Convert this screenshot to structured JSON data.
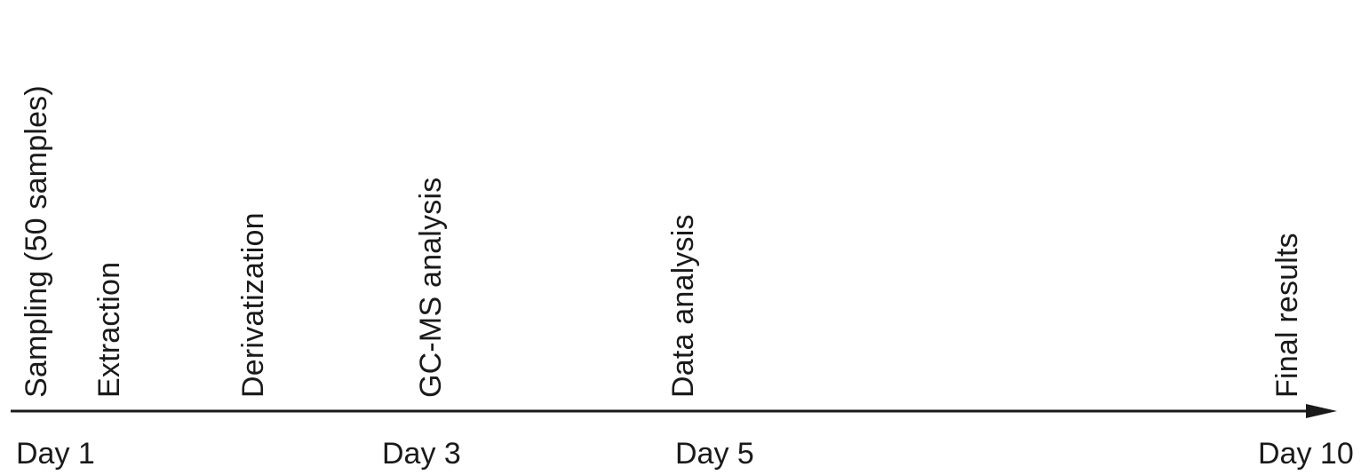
{
  "steps": [
    {
      "label": "Sampling (50  samples)"
    },
    {
      "label": "Extraction"
    },
    {
      "label": "Derivatization"
    },
    {
      "label": "GC-MS analysis"
    },
    {
      "label": "Data analysis"
    },
    {
      "label": "Final results"
    }
  ],
  "days": [
    {
      "label": "Day 1"
    },
    {
      "label": "Day 3"
    },
    {
      "label": "Day 5"
    },
    {
      "label": "Day 10"
    }
  ],
  "colors": {
    "text": "#1a1a1a",
    "axis": "#1a1a1a",
    "background": "#ffffff"
  }
}
